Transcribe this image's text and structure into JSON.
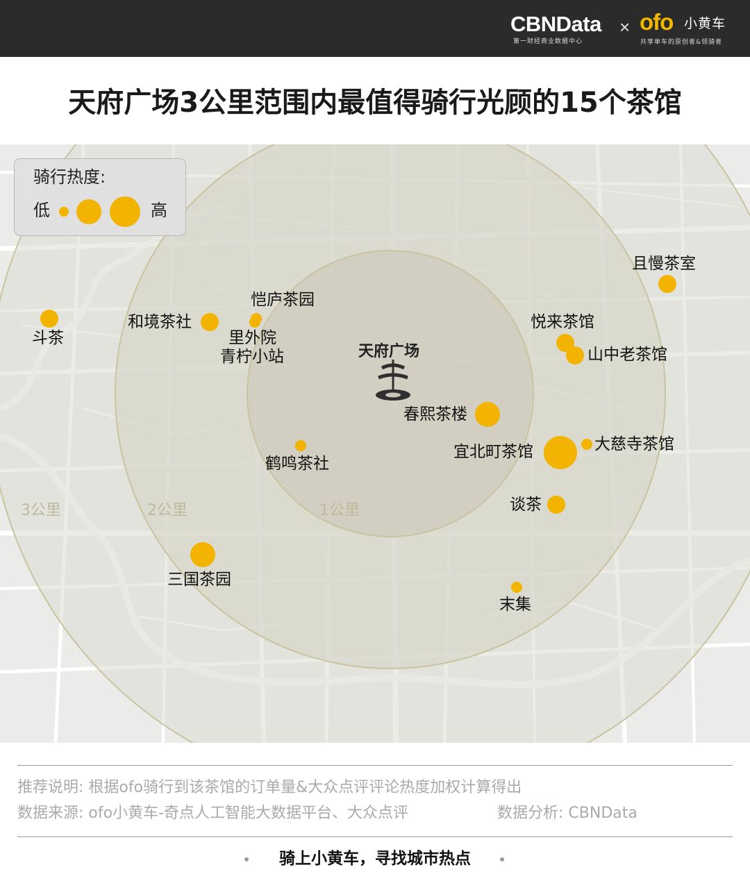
{
  "header": {
    "cbn_brand": "CBNData",
    "cbn_subtitle": "第一财经商业数据中心",
    "cross": "×",
    "ofo_brand": "ofo",
    "ofo_cn": "小黄车",
    "ofo_subtitle": "共享单车的原创者&领骑者"
  },
  "title": "天府广场3公里范围内最值得骑行光顾的15个茶馆",
  "legend": {
    "title": "骑行热度:",
    "low": "低",
    "high": "高"
  },
  "center": {
    "name": "天府广场",
    "icon": "tianfu-square-landmark-icon"
  },
  "rings": [
    "1公里",
    "2公里",
    "3公里"
  ],
  "places": [
    {
      "name": "斗茶",
      "heat": 2
    },
    {
      "name": "和境茶社",
      "heat": 2
    },
    {
      "name": "恺庐茶园",
      "heat": 1
    },
    {
      "name": "里外院",
      "heat": 1
    },
    {
      "name": "青柠小站",
      "heat": 1
    },
    {
      "name": "且慢茶室",
      "heat": 2
    },
    {
      "name": "悦来茶馆",
      "heat": 2
    },
    {
      "name": "山中老茶馆",
      "heat": 2
    },
    {
      "name": "春熙茶楼",
      "heat": 3
    },
    {
      "name": "大慈寺茶馆",
      "heat": 1
    },
    {
      "name": "宜北町茶馆",
      "heat": 4
    },
    {
      "name": "鹤鸣茶社",
      "heat": 1
    },
    {
      "name": "谈茶",
      "heat": 2
    },
    {
      "name": "三国茶园",
      "heat": 3
    },
    {
      "name": "末集",
      "heat": 1
    }
  ],
  "footer": {
    "note_method": "推荐说明: 根据ofo骑行到该茶馆的订单量&大众点评评论热度加权计算得出",
    "note_source": "数据来源: ofo小黄车-奇点人工智能大数据平台、大众点评",
    "note_analysis": "数据分析: CBNData",
    "slogan": "骑上小黄车，寻找城市热点"
  },
  "colors": {
    "dot": "#f2b400",
    "map_bg": "#ebebe9",
    "ring_outer": "#dddcd3",
    "ring_mid": "#d6d3c6",
    "ring_inner": "#cbc7b8",
    "ring_stroke": "#c9c39f",
    "header_bg": "#2b2b2b"
  }
}
